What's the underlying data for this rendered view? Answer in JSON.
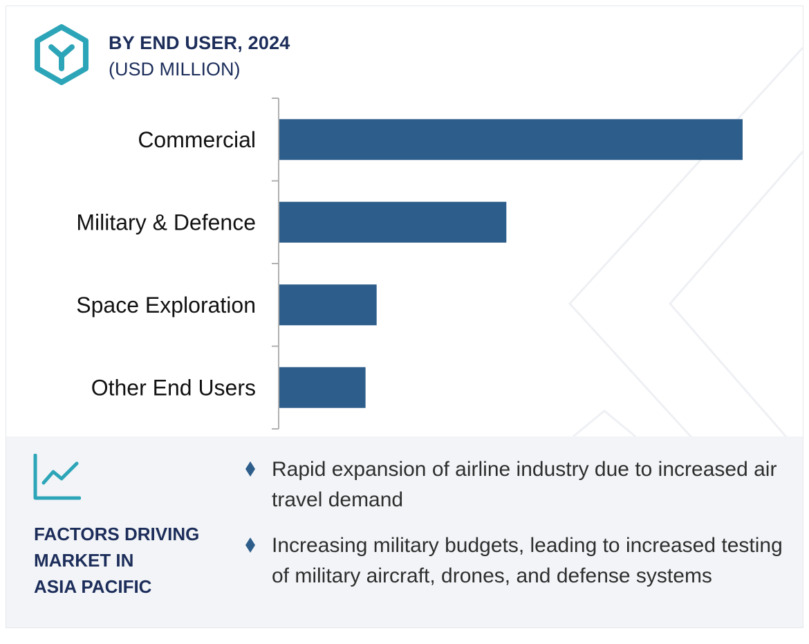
{
  "header": {
    "title": "BY END USER, 2024",
    "subtitle": "(USD MILLION)",
    "logo_icon": "hexagon-y-logo-icon"
  },
  "colors": {
    "bar": "#2d5d8a",
    "accent": "#2da5b8",
    "heading": "#1c2d5a",
    "panel_bg": "#f2f4f7"
  },
  "chart_data": {
    "type": "bar",
    "orientation": "horizontal",
    "title": "BY END USER, 2024",
    "subtitle": "(USD MILLION)",
    "categories": [
      "Commercial",
      "Military & Defence",
      "Space Exploration",
      "Other End Users"
    ],
    "values": [
      100,
      49,
      21,
      18.6
    ],
    "xlim": [
      0,
      100
    ],
    "grid": false,
    "axis_values_shown": false
  },
  "factors": {
    "icon": "trend-line-icon",
    "title_lines": [
      "FACTORS DRIVING",
      "MARKET IN",
      "ASIA PACIFIC"
    ],
    "bullet_icon": "diamond-bullet-icon",
    "bullets": [
      "Rapid expansion of airline industry due to increased air travel demand",
      "Increasing military budgets, leading to increased testing of military aircraft, drones, and defense systems"
    ]
  }
}
